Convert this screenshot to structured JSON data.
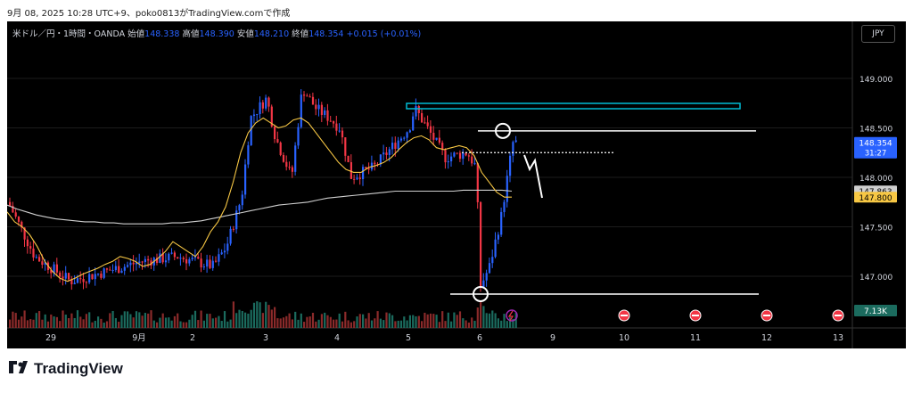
{
  "caption": "9月 08, 2025 10:28 UTC+9、poko0813がTradingView.comで作成",
  "legend": {
    "symbol": "米ドル／円・1時間・OANDA",
    "open_label": "始値",
    "open": "148.338",
    "high_label": "高値",
    "high": "148.390",
    "low_label": "安値",
    "low": "148.210",
    "close_label": "終値",
    "close": "148.354",
    "change": "+0.015 (+0.01%)"
  },
  "currency_button": "JPY",
  "brand": "TradingView",
  "colors": {
    "up": "#2962ff",
    "down": "#f23645",
    "ma_fast": "#f7c744",
    "ma_slow": "#cfcfcf",
    "box": "#00bcd4",
    "vol_up": "#1b6b5e",
    "vol_down": "#8a2a2a"
  },
  "chart_data": {
    "type": "line",
    "ylim": [
      146.7,
      149.3
    ],
    "y_ticks": [
      {
        "label": "149.000",
        "value": 149.0
      },
      {
        "label": "148.500",
        "value": 148.5
      },
      {
        "label": "148.000",
        "value": 148.0
      },
      {
        "label": "147.500",
        "value": 147.5
      },
      {
        "label": "147.000",
        "value": 147.0
      }
    ],
    "x_ticks": [
      "29",
      "9月",
      "2",
      "3",
      "4",
      "5",
      "6",
      "9",
      "10",
      "11",
      "12",
      "13"
    ],
    "price_labels": [
      {
        "text": "148.354",
        "sub": "31:27",
        "value": 148.354,
        "color": "#2962ff"
      },
      {
        "text": "147.863",
        "value": 147.863,
        "color": "#cfcfcf"
      },
      {
        "text": "147.800",
        "value": 147.8,
        "color": "#f7c744"
      }
    ],
    "volume_label": "7.13K",
    "series": [
      {
        "values": [
          147.65,
          147.55,
          147.5,
          147.42,
          147.3,
          147.15,
          147.05,
          146.98,
          146.95,
          146.98,
          147.02,
          147.05,
          147.08,
          147.12,
          147.15,
          147.2,
          147.18,
          147.15,
          147.1,
          147.12,
          147.18,
          147.25,
          147.35,
          147.3,
          147.25,
          147.2,
          147.3,
          147.45,
          147.55,
          147.7,
          147.95,
          148.25,
          148.45,
          148.55,
          148.6,
          148.55,
          148.5,
          148.52,
          148.58,
          148.6,
          148.55,
          148.45,
          148.35,
          148.25,
          148.15,
          148.08,
          148.05,
          148.05,
          148.1,
          148.12,
          148.15,
          148.2,
          148.28,
          148.35,
          148.4,
          148.42,
          148.38,
          148.3,
          148.28,
          148.3,
          148.32,
          148.3,
          148.22,
          148.05,
          147.95,
          147.85,
          147.8,
          147.8
        ]
      },
      {
        "values": [
          147.72,
          147.68,
          147.65,
          147.62,
          147.6,
          147.58,
          147.57,
          147.56,
          147.55,
          147.55,
          147.54,
          147.54,
          147.53,
          147.53,
          147.53,
          147.53,
          147.53,
          147.54,
          147.54,
          147.55,
          147.56,
          147.58,
          147.6,
          147.62,
          147.64,
          147.66,
          147.68,
          147.7,
          147.72,
          147.73,
          147.74,
          147.75,
          147.77,
          147.79,
          147.8,
          147.81,
          147.82,
          147.83,
          147.84,
          147.85,
          147.86,
          147.86,
          147.86,
          147.86,
          147.86,
          147.86,
          147.86,
          147.87,
          147.87,
          147.87,
          147.87,
          147.87,
          147.86
        ]
      }
    ]
  }
}
